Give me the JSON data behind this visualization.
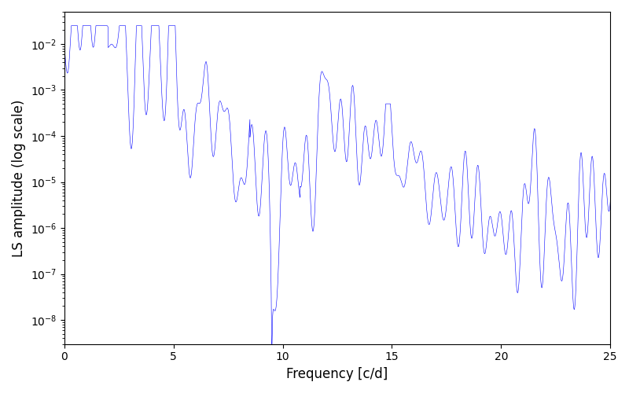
{
  "title": "",
  "xlabel": "Frequency [c/d]",
  "ylabel": "LS amplitude (log scale)",
  "xlim": [
    0,
    25
  ],
  "ylim": [
    3e-09,
    0.05
  ],
  "line_color": "#0000ff",
  "line_width": 0.4,
  "background_color": "#ffffff",
  "freq_max": 25,
  "num_points": 8000,
  "seed": 12345
}
